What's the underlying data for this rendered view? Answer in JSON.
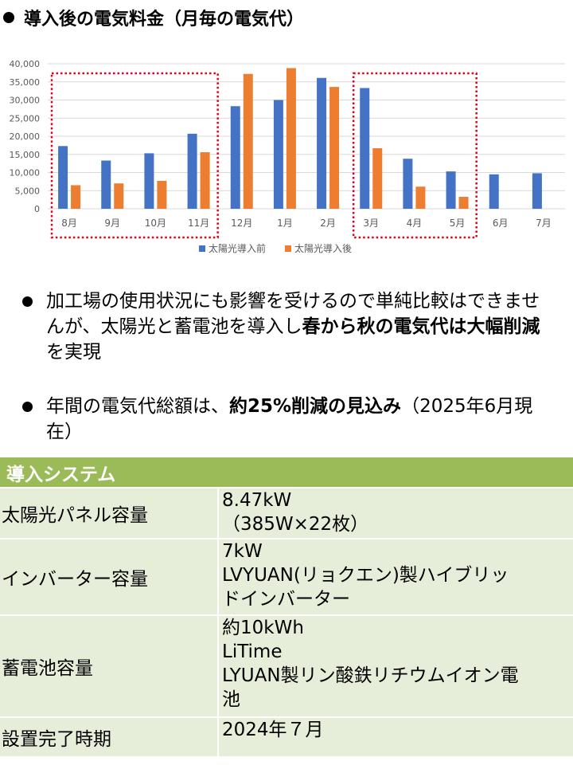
{
  "heading": "導入後の電気料金（月毎の電気代）",
  "chart_data": {
    "type": "bar",
    "categories": [
      "8月",
      "9月",
      "10月",
      "11月",
      "12月",
      "1月",
      "2月",
      "3月",
      "4月",
      "5月",
      "6月",
      "7月"
    ],
    "series": [
      {
        "name": "太陽光導入前",
        "color": "#4472c4",
        "values": [
          17300,
          13300,
          15300,
          20700,
          28300,
          30000,
          36100,
          33300,
          13800,
          10300,
          9500,
          9800
        ]
      },
      {
        "name": "太陽光導入後",
        "color": "#ed7d31",
        "values": [
          6500,
          7000,
          7700,
          15600,
          37200,
          38800,
          33600,
          16700,
          6100,
          3300,
          null,
          null
        ]
      }
    ],
    "y_ticks": [
      "0",
      "5,000",
      "10,000",
      "15,000",
      "20,000",
      "25,000",
      "30,000",
      "35,000",
      "40,000"
    ],
    "ylim": [
      0,
      40000
    ],
    "grid": true,
    "legend": "bottom",
    "highlight_groups": [
      [
        0,
        3
      ],
      [
        7,
        9
      ]
    ],
    "highlight_color": "#e0001b"
  },
  "bullets": [
    {
      "pre": "加工場の使用状況にも影響を受けるので単純比較はできませんが、太陽光と蓄電池を導入し",
      "bold": "春から秋の電気代は大幅削減",
      "post": "を実現"
    },
    {
      "pre": "年間の電気代総額は、",
      "bold": "約25%削減の見込み",
      "post": "（2025年6月現在）"
    }
  ],
  "system": {
    "title": "導入システム",
    "rows": [
      {
        "key": "太陽光パネル容量",
        "lines": [
          "8.47kW",
          "（385W×22枚）"
        ]
      },
      {
        "key": "インバーター容量",
        "lines": [
          "7kW",
          "LVYUAN(リョクエン)製ハイブリッ",
          "ドインバーター"
        ]
      },
      {
        "key": "蓄電池容量",
        "lines": [
          "約10kWh",
          "LiTime",
          "LYUAN製リン酸鉄リチウムイオン電",
          "池"
        ]
      },
      {
        "key": "設置完了時期",
        "lines": [
          "2024年７月"
        ]
      }
    ]
  }
}
